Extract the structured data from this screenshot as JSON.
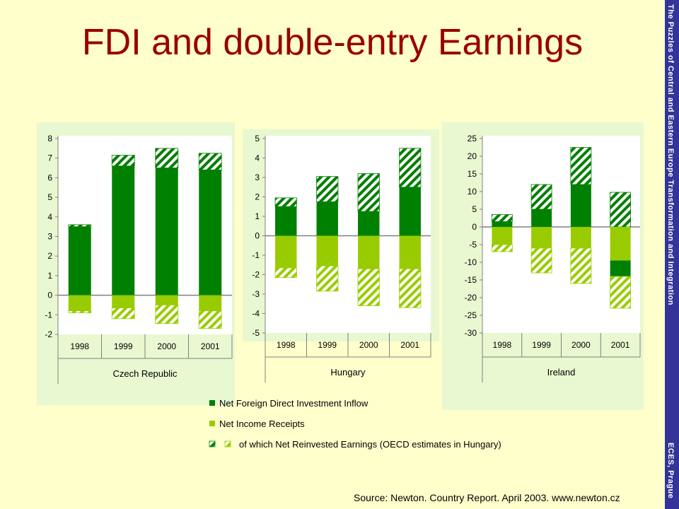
{
  "title": "FDI and double-entry Earnings",
  "side_top": "The Puzzles of Central and Eastern Europe Transformation and Integration",
  "side_bottom": "ECES, Prague",
  "source": "Source: Newton. Country Report. April 2003. www.newton.cz",
  "colors": {
    "fdi": "#008000",
    "income": "#99CC00",
    "panel_bg": "#E8F8D0",
    "plot_bg": "#FFFFFF"
  },
  "legend": [
    {
      "label": "Net Foreign Direct Investment Inflow",
      "key": "fdi"
    },
    {
      "label": "Net Income Receipts",
      "key": "income"
    },
    {
      "label": "of which Net Reinvested Earnings (OECD estimates in Hungary)",
      "key": "reinvested"
    }
  ],
  "chart_data": [
    {
      "type": "bar",
      "subtype": "stacked",
      "country": "Czech Republic",
      "categories": [
        "1998",
        "1999",
        "2000",
        "2001"
      ],
      "yticks": [
        8,
        7,
        6,
        5,
        4,
        3,
        2,
        1,
        0,
        -1,
        -2
      ],
      "ylim": [
        -2,
        8
      ],
      "fdi_solid": [
        3.5,
        6.6,
        6.5,
        6.4
      ],
      "fdi_reinvested": [
        0.1,
        0.55,
        1.0,
        0.85
      ],
      "income_solid": [
        -0.8,
        -0.65,
        -0.5,
        -0.8
      ],
      "income_reinvested": [
        -0.1,
        -0.55,
        -0.95,
        -0.9
      ]
    },
    {
      "type": "bar",
      "subtype": "stacked",
      "country": "Hungary",
      "categories": [
        "1998",
        "1999",
        "2000",
        "2001"
      ],
      "yticks": [
        5,
        4,
        3,
        2,
        1,
        0,
        -1,
        -2,
        -3,
        -4,
        -5
      ],
      "ylim": [
        -5,
        5
      ],
      "fdi_solid": [
        1.5,
        1.75,
        1.25,
        2.5
      ],
      "fdi_reinvested": [
        0.45,
        1.3,
        1.95,
        2.0
      ],
      "income_solid": [
        -1.65,
        -1.55,
        -1.7,
        -1.7
      ],
      "income_reinvested": [
        -0.5,
        -1.3,
        -1.9,
        -2.0
      ]
    },
    {
      "type": "bar",
      "subtype": "stacked",
      "country": "Ireland",
      "categories": [
        "1998",
        "1999",
        "2000",
        "2001"
      ],
      "yticks": [
        25,
        20,
        15,
        10,
        5,
        0,
        -5,
        -10,
        -15,
        -20,
        -25,
        -30
      ],
      "ylim": [
        -30,
        25
      ],
      "fdi_solid": [
        1.5,
        5.0,
        12.0,
        0
      ],
      "fdi_reinvested": [
        2.0,
        7.0,
        10.5,
        9.8
      ],
      "income_solid": [
        -5.0,
        -6.0,
        -6.0,
        -9.5
      ],
      "income_reinvested": [
        -2.0,
        -7.0,
        -10.0,
        -9.0
      ],
      "fdi_negative": [
        0,
        0,
        0,
        -4.5
      ]
    }
  ]
}
